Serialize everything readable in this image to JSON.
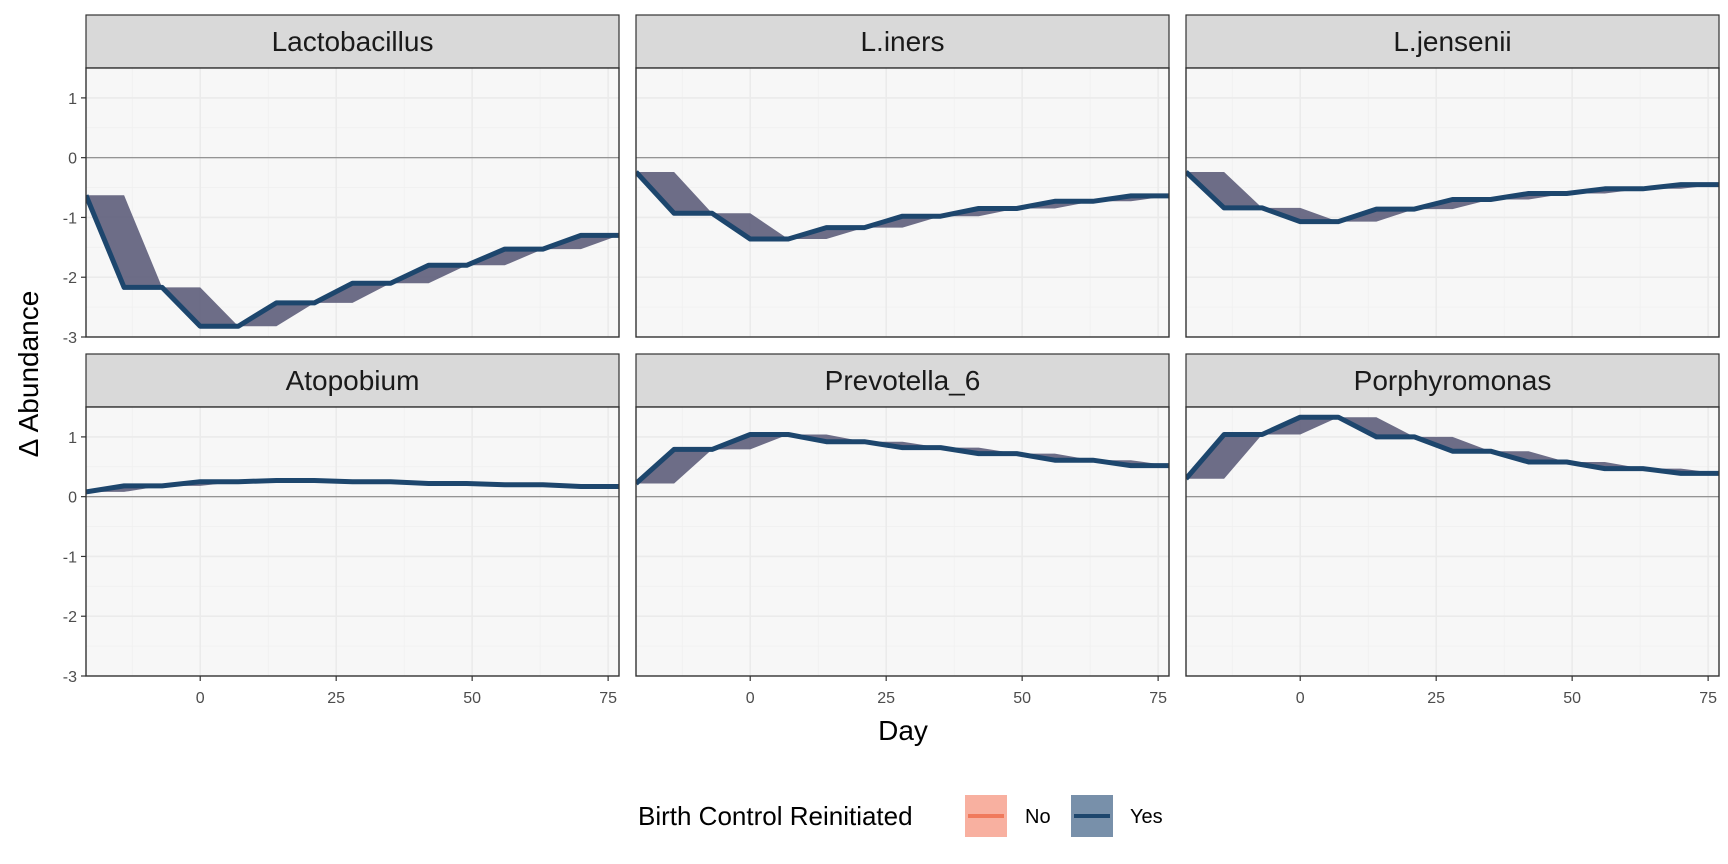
{
  "chart_data": {
    "type": "line",
    "xlabel": "Day",
    "ylabel": "Δ Abundance",
    "xlim": [
      -21,
      77
    ],
    "ylim": [
      -3,
      1.5
    ],
    "x_ticks": [
      0,
      25,
      50,
      75
    ],
    "y_ticks": [
      -3,
      -2,
      -1,
      0,
      1
    ],
    "x": [
      -21,
      -14,
      -7,
      0,
      7,
      14,
      21,
      28,
      35,
      42,
      49,
      56,
      63,
      70,
      77
    ],
    "legend": {
      "title": "Birth Control Reinitiated",
      "placement": "bottom",
      "entries": [
        {
          "label": "No",
          "line_color": "#f07a5c",
          "fill_color": "#f8b0a0"
        },
        {
          "label": "Yes",
          "line_color": "#1d466d",
          "fill_color": "#7890aa"
        }
      ]
    },
    "ribbon_color": "#5a5a78",
    "panels": [
      {
        "title": "Lactobacillus",
        "no": [
          -0.63,
          -0.63,
          -2.17,
          -2.17,
          -2.82,
          -2.82,
          -2.43,
          -2.43,
          -2.1,
          -2.1,
          -1.8,
          -1.8,
          -1.53,
          -1.53,
          -1.3
        ],
        "yes": [
          -0.63,
          -2.17,
          -2.17,
          -2.82,
          -2.82,
          -2.43,
          -2.43,
          -2.1,
          -2.1,
          -1.8,
          -1.8,
          -1.53,
          -1.53,
          -1.3,
          -1.3
        ]
      },
      {
        "title": "L.iners",
        "no": [
          -0.24,
          -0.24,
          -0.93,
          -0.93,
          -1.36,
          -1.36,
          -1.17,
          -1.17,
          -0.98,
          -0.98,
          -0.85,
          -0.85,
          -0.73,
          -0.73,
          -0.64
        ],
        "yes": [
          -0.24,
          -0.93,
          -0.93,
          -1.36,
          -1.36,
          -1.17,
          -1.17,
          -0.98,
          -0.98,
          -0.85,
          -0.85,
          -0.73,
          -0.73,
          -0.64,
          -0.64
        ]
      },
      {
        "title": "L.jensenii",
        "no": [
          -0.24,
          -0.24,
          -0.84,
          -0.84,
          -1.07,
          -1.07,
          -0.86,
          -0.86,
          -0.7,
          -0.7,
          -0.6,
          -0.6,
          -0.52,
          -0.52,
          -0.45
        ],
        "yes": [
          -0.24,
          -0.84,
          -0.84,
          -1.07,
          -1.07,
          -0.86,
          -0.86,
          -0.7,
          -0.7,
          -0.6,
          -0.6,
          -0.52,
          -0.52,
          -0.45,
          -0.45
        ]
      },
      {
        "title": "Atopobium",
        "no": [
          0.08,
          0.08,
          0.18,
          0.18,
          0.25,
          0.25,
          0.27,
          0.27,
          0.25,
          0.25,
          0.22,
          0.22,
          0.2,
          0.2,
          0.17
        ],
        "yes": [
          0.08,
          0.18,
          0.18,
          0.25,
          0.25,
          0.27,
          0.27,
          0.25,
          0.25,
          0.22,
          0.22,
          0.2,
          0.2,
          0.17,
          0.17
        ]
      },
      {
        "title": "Prevotella_6",
        "no": [
          0.22,
          0.22,
          0.79,
          0.79,
          1.04,
          1.04,
          0.92,
          0.92,
          0.82,
          0.82,
          0.72,
          0.72,
          0.61,
          0.61,
          0.52
        ],
        "yes": [
          0.22,
          0.79,
          0.79,
          1.04,
          1.04,
          0.92,
          0.92,
          0.82,
          0.82,
          0.72,
          0.72,
          0.61,
          0.61,
          0.52,
          0.52
        ]
      },
      {
        "title": "Porphyromonas",
        "no": [
          0.3,
          0.3,
          1.04,
          1.04,
          1.33,
          1.33,
          1.0,
          1.0,
          0.76,
          0.76,
          0.58,
          0.58,
          0.47,
          0.47,
          0.39
        ],
        "yes": [
          0.3,
          1.04,
          1.04,
          1.33,
          1.33,
          1.0,
          1.0,
          0.76,
          0.76,
          0.58,
          0.58,
          0.47,
          0.47,
          0.39,
          0.39
        ]
      }
    ]
  }
}
